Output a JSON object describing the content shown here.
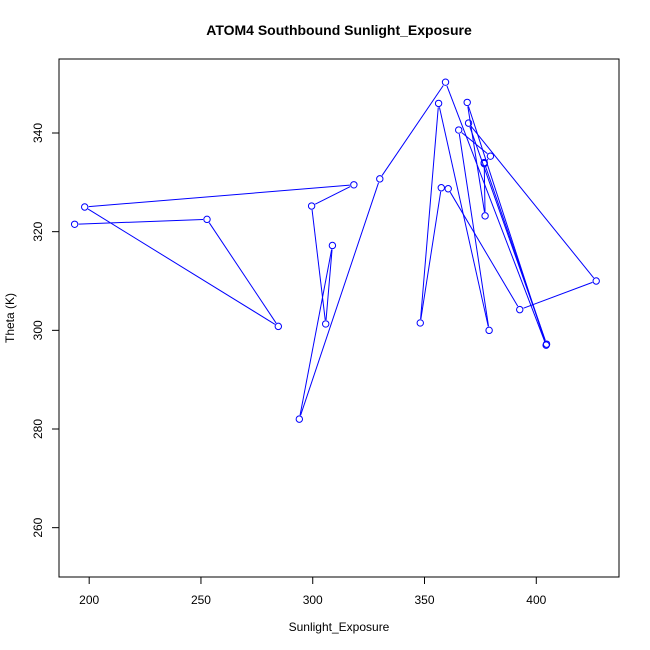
{
  "chart_data": {
    "type": "line",
    "title": "ATOM4 Southbound Sunlight_Exposure",
    "xlabel": "Sunlight_Exposure",
    "ylabel": "Theta (K)",
    "xlim": [
      186.5,
      437
    ],
    "ylim": [
      250,
      355
    ],
    "x_ticks": [
      200,
      250,
      300,
      350,
      400
    ],
    "y_ticks": [
      260,
      280,
      300,
      320,
      340
    ],
    "grid": false,
    "marker": "open-circle",
    "color": "#0000ff",
    "series": [
      {
        "name": "",
        "points": [
          [
            193.5,
            321.5
          ],
          [
            252.7,
            322.5
          ],
          [
            284.6,
            300.8
          ],
          [
            198.0,
            325.0
          ],
          [
            318.4,
            329.5
          ],
          [
            299.5,
            325.2
          ],
          [
            305.8,
            301.3
          ],
          [
            308.8,
            317.2
          ],
          [
            294.0,
            282.0
          ],
          [
            330.0,
            330.7
          ],
          [
            359.4,
            350.3
          ],
          [
            404.4,
            297.0
          ],
          [
            369.1,
            346.2
          ],
          [
            377.1,
            323.2
          ],
          [
            376.7,
            334.0
          ],
          [
            404.6,
            297.2
          ],
          [
            369.7,
            342.0
          ],
          [
            426.8,
            310.0
          ],
          [
            392.6,
            304.2
          ],
          [
            360.6,
            328.7
          ],
          [
            357.5,
            328.9
          ],
          [
            348.1,
            301.5
          ],
          [
            356.3,
            346.0
          ],
          [
            378.9,
            300.0
          ],
          [
            365.3,
            340.6
          ],
          [
            379.5,
            335.3
          ],
          [
            376.7,
            333.8
          ]
        ]
      }
    ]
  }
}
